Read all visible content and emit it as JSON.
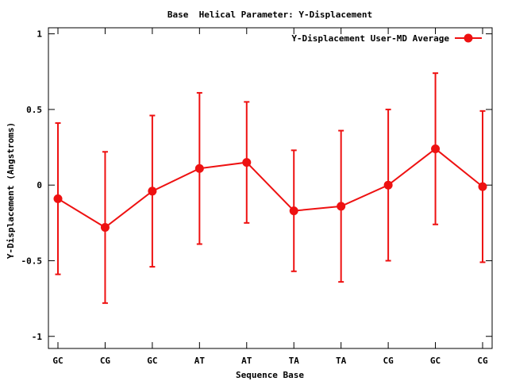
{
  "chart_data": {
    "type": "line",
    "title": "Base  Helical Parameter: Y-Displacement",
    "xlabel": "Sequence Base",
    "ylabel": "Y-Displacement (Angstroms)",
    "categories": [
      "GC",
      "CG",
      "GC",
      "AT",
      "AT",
      "TA",
      "TA",
      "CG",
      "GC",
      "CG"
    ],
    "ylim": [
      -1.08,
      1.04
    ],
    "yticks": [
      {
        "value": 1,
        "label": "1"
      },
      {
        "value": 0.5,
        "label": "0.5"
      },
      {
        "value": 0,
        "label": "0"
      },
      {
        "value": -0.5,
        "label": "-0.5"
      },
      {
        "value": -1,
        "label": "-1"
      }
    ],
    "grid": false,
    "legend_position": "top-right",
    "series": [
      {
        "name": "Y-Displacement User-MD Average",
        "color": "#ee1111",
        "values": [
          -0.09,
          -0.28,
          -0.04,
          0.11,
          0.15,
          -0.17,
          -0.14,
          0.0,
          0.24,
          -0.01
        ],
        "error": [
          0.5,
          0.5,
          0.5,
          0.5,
          0.4,
          0.4,
          0.5,
          0.5,
          0.5,
          0.5
        ]
      }
    ]
  }
}
